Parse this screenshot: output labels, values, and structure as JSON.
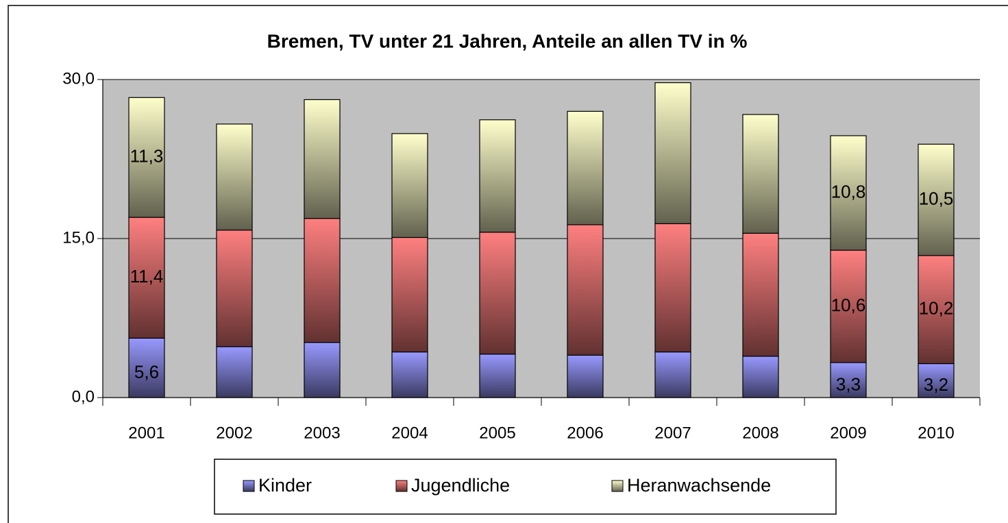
{
  "chart_data": {
    "type": "stacked_bar",
    "title": "Bremen, TV unter 21 Jahren, Anteile an allen TV in %",
    "categories": [
      "2001",
      "2002",
      "2003",
      "2004",
      "2005",
      "2006",
      "2007",
      "2008",
      "2009",
      "2010"
    ],
    "series": [
      {
        "name": "Kinder",
        "color": "#9999ff",
        "values": [
          5.6,
          4.8,
          5.2,
          4.3,
          4.1,
          4.0,
          4.3,
          3.9,
          3.3,
          3.2
        ],
        "value_labels": [
          "5,6",
          null,
          null,
          null,
          null,
          null,
          null,
          null,
          "3,3",
          "3,2"
        ]
      },
      {
        "name": "Jugendliche",
        "color": "#ff8080",
        "values": [
          11.4,
          11.0,
          11.7,
          10.8,
          11.5,
          12.3,
          12.1,
          11.6,
          10.6,
          10.2
        ],
        "value_labels": [
          "11,4",
          null,
          null,
          null,
          null,
          null,
          null,
          null,
          "10,6",
          "10,2"
        ]
      },
      {
        "name": "Heranwachsende",
        "color": "#ffffcc",
        "values": [
          11.3,
          10.0,
          11.2,
          9.8,
          10.6,
          10.7,
          13.3,
          11.2,
          10.8,
          10.5
        ],
        "value_labels": [
          "11,3",
          null,
          null,
          null,
          null,
          null,
          null,
          null,
          "10,8",
          "10,5"
        ]
      }
    ],
    "ylim": [
      0,
      30
    ],
    "yticks": [
      {
        "value": 0,
        "label": "0,0"
      },
      {
        "value": 15,
        "label": "15,0"
      },
      {
        "value": 30,
        "label": "30,0"
      }
    ],
    "grid": true,
    "legend": "bottom"
  }
}
